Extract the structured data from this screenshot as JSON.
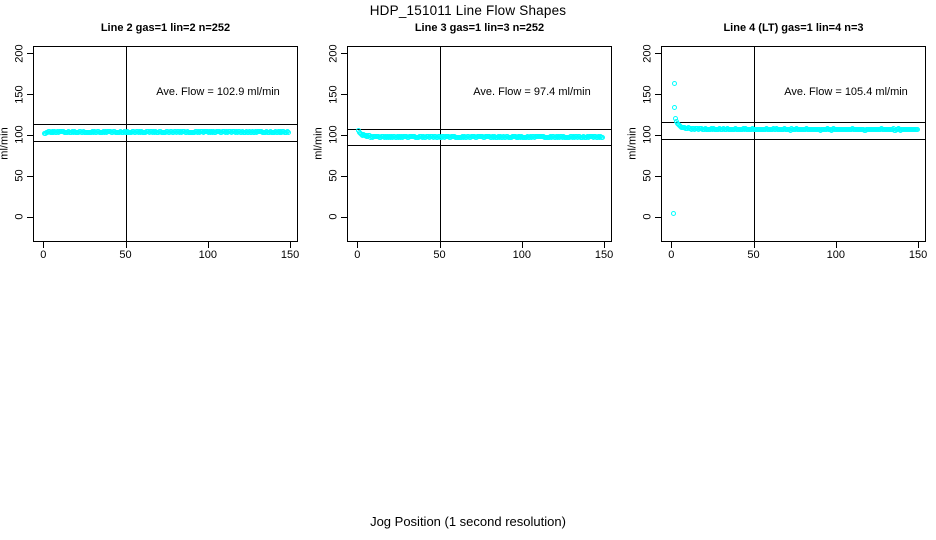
{
  "title": "HDP_151011  Line Flow Shapes",
  "xlabel": "Jog Position (1 second resolution)",
  "colors": {
    "point_color": "#00ffff",
    "axis_color": "#000000",
    "background": "#ffffff"
  },
  "chart_data": [
    {
      "type": "scatter",
      "title": "Line 2 gas=1 lin=2 n=252",
      "ylabel": "ml/min",
      "n": 252,
      "ave_flow": 102.9,
      "ave_flow_label": "Ave. Flow =  102.9  ml/min",
      "x_ticks": [
        0,
        50,
        100,
        150
      ],
      "y_ticks": [
        0,
        50,
        100,
        150,
        200
      ],
      "xlim": [
        -6,
        156
      ],
      "ylim": [
        -30,
        210
      ],
      "vline_x": 50,
      "ref_lines": [
        113.2,
        92.6
      ],
      "x_start": 0.8,
      "x_end": 150,
      "x_step": 0.6,
      "jitter": 0.7,
      "profile": [
        [
          0.8,
          100.3
        ],
        [
          1.6,
          102.0
        ],
        [
          3,
          102.8
        ],
        [
          150,
          103.0
        ]
      ],
      "outliers": []
    },
    {
      "type": "scatter",
      "title": "Line 3 gas=1 lin=3 n=252",
      "ylabel": "ml/min",
      "n": 252,
      "ave_flow": 97.4,
      "ave_flow_label": "Ave. Flow =  97.4  ml/min",
      "x_ticks": [
        0,
        50,
        100,
        150
      ],
      "y_ticks": [
        0,
        50,
        100,
        150,
        200
      ],
      "xlim": [
        -6,
        156
      ],
      "ylim": [
        -30,
        210
      ],
      "vline_x": 50,
      "ref_lines": [
        107.1,
        87.7
      ],
      "x_start": 0.8,
      "x_end": 150,
      "x_step": 0.6,
      "jitter": 0.7,
      "profile": [
        [
          0.8,
          104.3
        ],
        [
          1.4,
          102.5
        ],
        [
          2.5,
          100.5
        ],
        [
          4,
          99.0
        ],
        [
          6,
          98.0
        ],
        [
          10,
          97.3
        ],
        [
          20,
          97.0
        ],
        [
          150,
          96.8
        ]
      ],
      "outliers": []
    },
    {
      "type": "scatter",
      "title": "Line 4 (LT) gas=1 lin=4 n=3",
      "ylabel": "ml/min",
      "n": 3,
      "ave_flow": 105.4,
      "ave_flow_label": "Ave. Flow =  105.4  ml/min",
      "x_ticks": [
        0,
        50,
        100,
        150
      ],
      "y_ticks": [
        0,
        50,
        100,
        150,
        200
      ],
      "xlim": [
        -6,
        156
      ],
      "ylim": [
        -30,
        210
      ],
      "vline_x": 50,
      "ref_lines": [
        115.9,
        94.9
      ],
      "x_start": 2.8,
      "x_end": 150,
      "x_step": 0.6,
      "jitter": 0.7,
      "profile": [
        [
          2.8,
          120.0
        ],
        [
          3.5,
          115.0
        ],
        [
          5,
          111.0
        ],
        [
          7,
          109.0
        ],
        [
          10,
          107.5
        ],
        [
          15,
          106.8
        ],
        [
          30,
          106.2
        ],
        [
          150,
          106.0
        ]
      ],
      "outliers": [
        [
          2.0,
          162.0
        ],
        [
          2.5,
          133.0
        ],
        [
          1.5,
          3.0
        ]
      ]
    }
  ]
}
